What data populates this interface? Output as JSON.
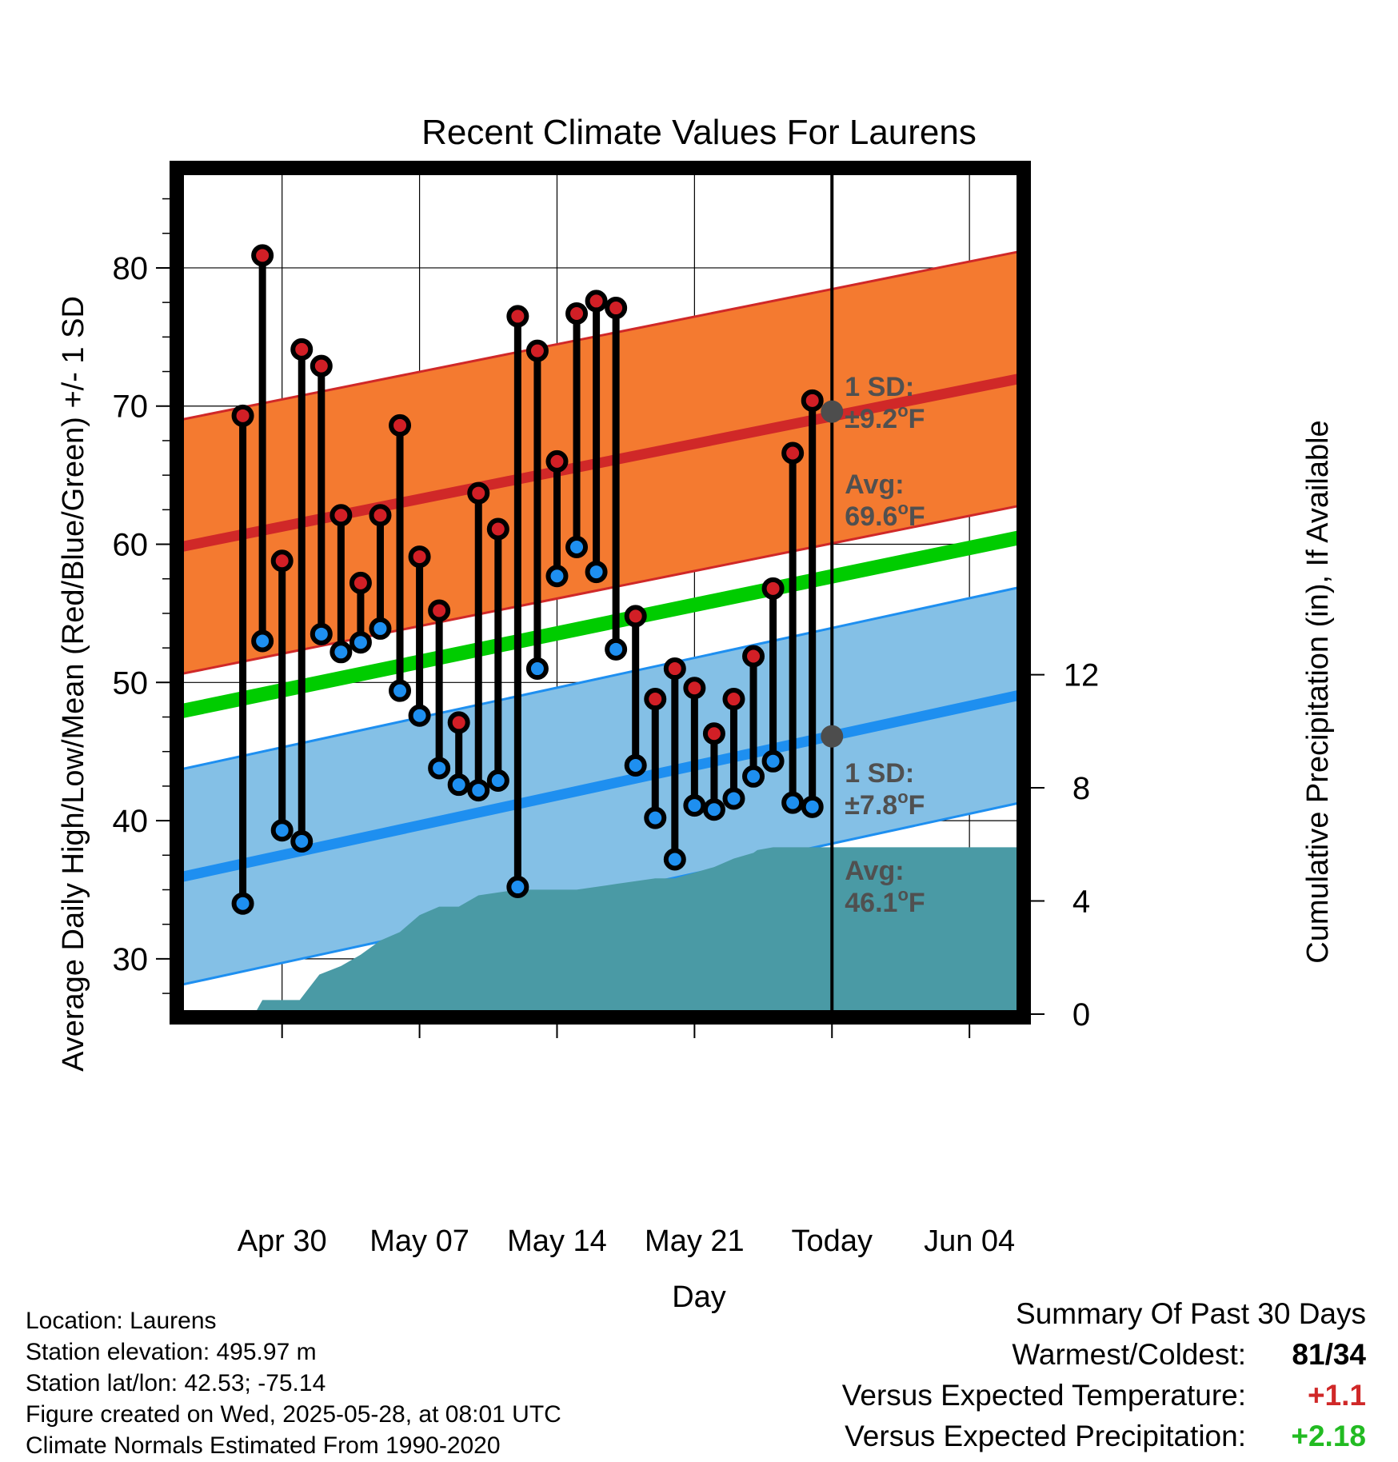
{
  "chart_data": {
    "type": "line",
    "title": "Recent Climate Values For Laurens",
    "xlabel": "Day",
    "ylabel": "Average Daily High/Low/Mean (Red/Blue/Green) +/- 1 SD",
    "y2label": "Cumulative Precipitation (in), If Available",
    "xticks": [
      "Apr 30",
      "May 07",
      "May 14",
      "May 21",
      "Today",
      "Jun 04"
    ],
    "xrange_days": [
      -33.2,
      9.6
    ],
    "today_offset_days": 0,
    "ylim": [
      26,
      87
    ],
    "yticks": [
      30,
      40,
      50,
      60,
      70,
      80
    ],
    "y2lim": [
      0,
      29.8
    ],
    "y2ticks": [
      0,
      4,
      8,
      12
    ],
    "grid": true,
    "normals": {
      "high_avg": [
        59.8,
        72.0
      ],
      "high_sd": 9.2,
      "low_avg": [
        35.9,
        49.1
      ],
      "low_sd": 7.8,
      "mean_avg": [
        47.9,
        60.5
      ]
    },
    "annotations": {
      "high_sd_label": "1 SD:",
      "high_sd_value": "±9.2",
      "high_avg_label": "Avg:",
      "high_avg_value": "69.6",
      "low_sd_label": "1 SD:",
      "low_sd_value": "±7.8",
      "low_avg_label": "Avg:",
      "low_avg_value": "46.1",
      "degree_unit": "F",
      "degree_sup": "o",
      "window_label_1": "30",
      "window_label_2": "Days",
      "today_high_avg": 69.6,
      "today_low_avg": 46.1
    },
    "daily": {
      "day_offset": [
        -30,
        -29,
        -28,
        -27,
        -26,
        -25,
        -24,
        -23,
        -22,
        -21,
        -20,
        -19,
        -18,
        -17,
        -16,
        -15,
        -14,
        -13,
        -12,
        -11,
        -10,
        -9,
        -8,
        -7,
        -6,
        -5,
        -4,
        -3,
        -2,
        -1
      ],
      "high": [
        69.3,
        80.9,
        58.8,
        74.1,
        72.9,
        62.1,
        57.2,
        62.1,
        68.6,
        59.1,
        55.2,
        47.1,
        63.7,
        61.1,
        76.5,
        74.0,
        66.0,
        76.7,
        77.6,
        77.1,
        54.8,
        48.8,
        51.0,
        49.6,
        46.3,
        48.8,
        51.9,
        56.8,
        66.6,
        70.4
      ],
      "low": [
        34.0,
        53.0,
        39.3,
        38.5,
        53.5,
        52.2,
        52.9,
        53.9,
        49.4,
        47.6,
        43.8,
        42.6,
        42.2,
        42.9,
        35.2,
        51.0,
        57.7,
        59.8,
        58.0,
        52.4,
        44.0,
        40.2,
        37.2,
        41.1,
        40.8,
        41.6,
        43.2,
        44.3,
        41.3,
        41.0
      ]
    },
    "precip_cumulative": {
      "day_offset": [
        -29.4,
        -29.0,
        -27.1,
        -26.1,
        -25.0,
        -24.0,
        -23.0,
        -22.0,
        -21.0,
        -20.0,
        -19.0,
        -18.0,
        -17.0,
        -16.0,
        -14.0,
        -13.0,
        -12.0,
        -11.0,
        -10.0,
        -9.0,
        -8.0,
        -7.0,
        -6.0,
        -5.0,
        -4.0,
        -3.8,
        -3.0,
        -2.0,
        -1.0,
        0,
        9.6
      ],
      "total": [
        0,
        0.5,
        0.5,
        1.4,
        1.7,
        2.1,
        2.6,
        2.9,
        3.5,
        3.8,
        3.8,
        4.2,
        4.3,
        4.4,
        4.4,
        4.4,
        4.5,
        4.6,
        4.7,
        4.8,
        4.8,
        5.0,
        5.2,
        5.5,
        5.7,
        5.8,
        5.9,
        5.9,
        5.9,
        5.9,
        5.9
      ]
    },
    "colors": {
      "high_band": "#f47a30",
      "high_line": "#d02828",
      "low_band": "#84c0e6",
      "low_line": "#1e8ff0",
      "mean_line": "#00cc00",
      "precip": "#4a9aa5",
      "annotation_text": "#505050"
    }
  },
  "footer": {
    "location": "Location: Laurens",
    "elevation": "Station elevation: 495.97 m",
    "latlon": "Station lat/lon: 42.53; -75.14",
    "created": "Figure created on Wed, 2025-05-28, at 08:01 UTC",
    "normals": "Climate Normals Estimated From 1990-2020"
  },
  "summary": {
    "title": "Summary Of Past 30 Days",
    "warm_cold_label": "Warmest/Coldest:",
    "warm": "81",
    "slash": "/",
    "cold": "34",
    "temp_label": "Versus Expected Temperature:",
    "temp_value": "+1.1",
    "precip_label": "Versus Expected Precipitation:",
    "precip_value": "+2.18",
    "temp_color": "#d02828",
    "precip_color": "#22bb22"
  }
}
